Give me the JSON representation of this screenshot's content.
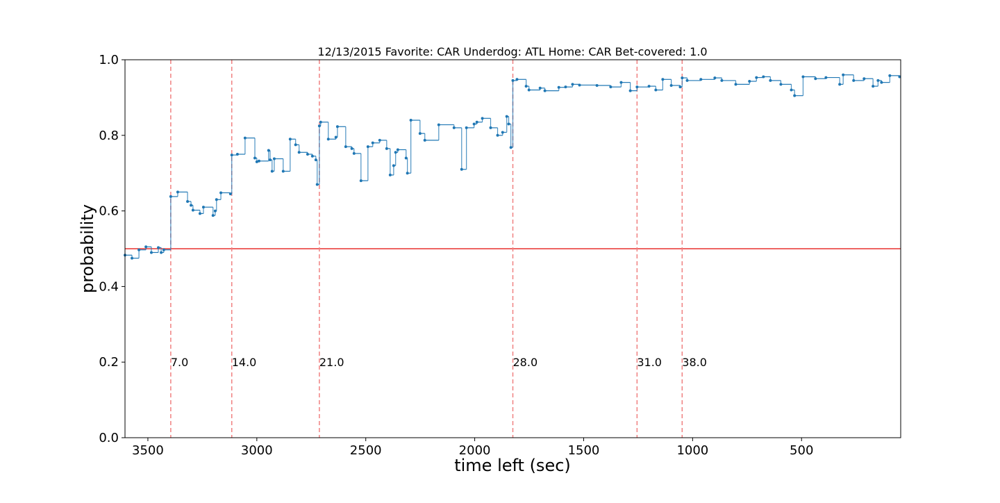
{
  "chart_data": {
    "type": "line",
    "drawstyle": "steps-post",
    "title": "12/13/2015 Favorite: CAR Underdog: ATL Home: CAR Bet-covered: 1.0",
    "xlabel": "time left (sec)",
    "ylabel": "probability",
    "xlim": [
      3605,
      45
    ],
    "ylim": [
      0,
      1
    ],
    "xticks": [
      3500,
      3000,
      2500,
      2000,
      1500,
      1000,
      500
    ],
    "yticks": [
      {
        "value": 0,
        "label": "0.0"
      },
      {
        "value": 0.2,
        "label": "0.2"
      },
      {
        "value": 0.4,
        "label": "0.4"
      },
      {
        "value": 0.6,
        "label": "0.6"
      },
      {
        "value": 0.8,
        "label": "0.8"
      },
      {
        "value": 1,
        "label": "1.0"
      }
    ],
    "hline": {
      "y": 0.5,
      "color": "#e8312f"
    },
    "vline_color": "#f08080",
    "annotations": [
      {
        "x": 3395,
        "y": 0.2,
        "text": "7.0"
      },
      {
        "x": 3115,
        "y": 0.2,
        "text": "14.0"
      },
      {
        "x": 2713,
        "y": 0.2,
        "text": "21.0"
      },
      {
        "x": 1825,
        "y": 0.2,
        "text": "28.0"
      },
      {
        "x": 1255,
        "y": 0.2,
        "text": "31.0"
      },
      {
        "x": 1048,
        "y": 0.2,
        "text": "38.0"
      }
    ],
    "color": "#1f77b4",
    "x": [
      3605,
      3573,
      3541,
      3509,
      3484,
      3452,
      3439,
      3427,
      3395,
      3363,
      3318,
      3302,
      3293,
      3261,
      3245,
      3201,
      3191,
      3185,
      3165,
      3121,
      3115,
      3089,
      3054,
      3009,
      3000,
      2990,
      2946,
      2939,
      2930,
      2920,
      2879,
      2847,
      2822,
      2806,
      2767,
      2745,
      2729,
      2723,
      2713,
      2707,
      2672,
      2637,
      2630,
      2592,
      2564,
      2554,
      2522,
      2490,
      2468,
      2436,
      2404,
      2388,
      2372,
      2363,
      2353,
      2315,
      2309,
      2293,
      2251,
      2229,
      2165,
      2095,
      2060,
      2038,
      2003,
      1990,
      1965,
      1927,
      1895,
      1872,
      1853,
      1844,
      1834,
      1825,
      1806,
      1764,
      1751,
      1700,
      1678,
      1614,
      1583,
      1551,
      1519,
      1439,
      1376,
      1328,
      1286,
      1255,
      1200,
      1169,
      1137,
      1098,
      1057,
      1048,
      1025,
      962,
      898,
      866,
      802,
      739,
      707,
      675,
      643,
      595,
      547,
      532,
      493,
      436,
      388,
      325,
      309,
      261,
      213,
      172,
      149,
      133,
      95,
      50
    ],
    "values": [
      0.483,
      0.475,
      0.497,
      0.505,
      0.49,
      0.503,
      0.49,
      0.497,
      0.638,
      0.65,
      0.625,
      0.615,
      0.602,
      0.593,
      0.61,
      0.588,
      0.6,
      0.63,
      0.648,
      0.645,
      0.748,
      0.75,
      0.793,
      0.74,
      0.73,
      0.732,
      0.76,
      0.735,
      0.705,
      0.738,
      0.705,
      0.79,
      0.775,
      0.755,
      0.75,
      0.745,
      0.735,
      0.67,
      0.825,
      0.835,
      0.79,
      0.795,
      0.823,
      0.77,
      0.765,
      0.752,
      0.68,
      0.77,
      0.78,
      0.787,
      0.765,
      0.695,
      0.72,
      0.755,
      0.762,
      0.74,
      0.7,
      0.84,
      0.805,
      0.787,
      0.828,
      0.82,
      0.71,
      0.82,
      0.83,
      0.835,
      0.845,
      0.82,
      0.8,
      0.808,
      0.85,
      0.83,
      0.768,
      0.945,
      0.948,
      0.93,
      0.92,
      0.925,
      0.918,
      0.927,
      0.928,
      0.935,
      0.933,
      0.932,
      0.928,
      0.94,
      0.918,
      0.928,
      0.93,
      0.92,
      0.948,
      0.932,
      0.928,
      0.952,
      0.945,
      0.948,
      0.952,
      0.945,
      0.935,
      0.943,
      0.953,
      0.955,
      0.945,
      0.935,
      0.92,
      0.905,
      0.955,
      0.95,
      0.953,
      0.935,
      0.96,
      0.945,
      0.95,
      0.93,
      0.945,
      0.94,
      0.958,
      0.955
    ]
  }
}
